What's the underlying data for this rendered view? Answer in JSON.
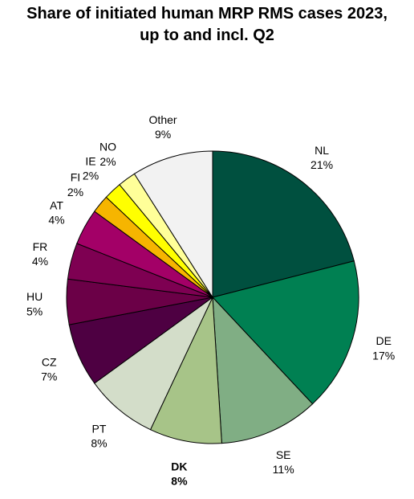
{
  "chart_data": {
    "type": "pie",
    "title": "Share of initiated human MRP RMS cases 2023, up to and incl. Q2",
    "categories": [
      "NL",
      "DE",
      "SE",
      "DK",
      "PT",
      "CZ",
      "HU",
      "FR",
      "AT",
      "FI",
      "IE",
      "NO",
      "Other"
    ],
    "values": [
      21,
      17,
      11,
      8,
      8,
      7,
      5,
      4,
      4,
      2,
      2,
      2,
      9
    ],
    "value_labels": [
      "21%",
      "17%",
      "11%",
      "8%",
      "8%",
      "7%",
      "5%",
      "4%",
      "4%",
      "2%",
      "2%",
      "2%",
      "9%"
    ],
    "colors": [
      "#00503f",
      "#008052",
      "#80ae84",
      "#a7c488",
      "#d3ddc9",
      "#4e0042",
      "#6b0047",
      "#7e0052",
      "#a30067",
      "#f6b500",
      "#ffff00",
      "#ffff99",
      "#f2f2f2"
    ],
    "emphasized": "DK"
  }
}
